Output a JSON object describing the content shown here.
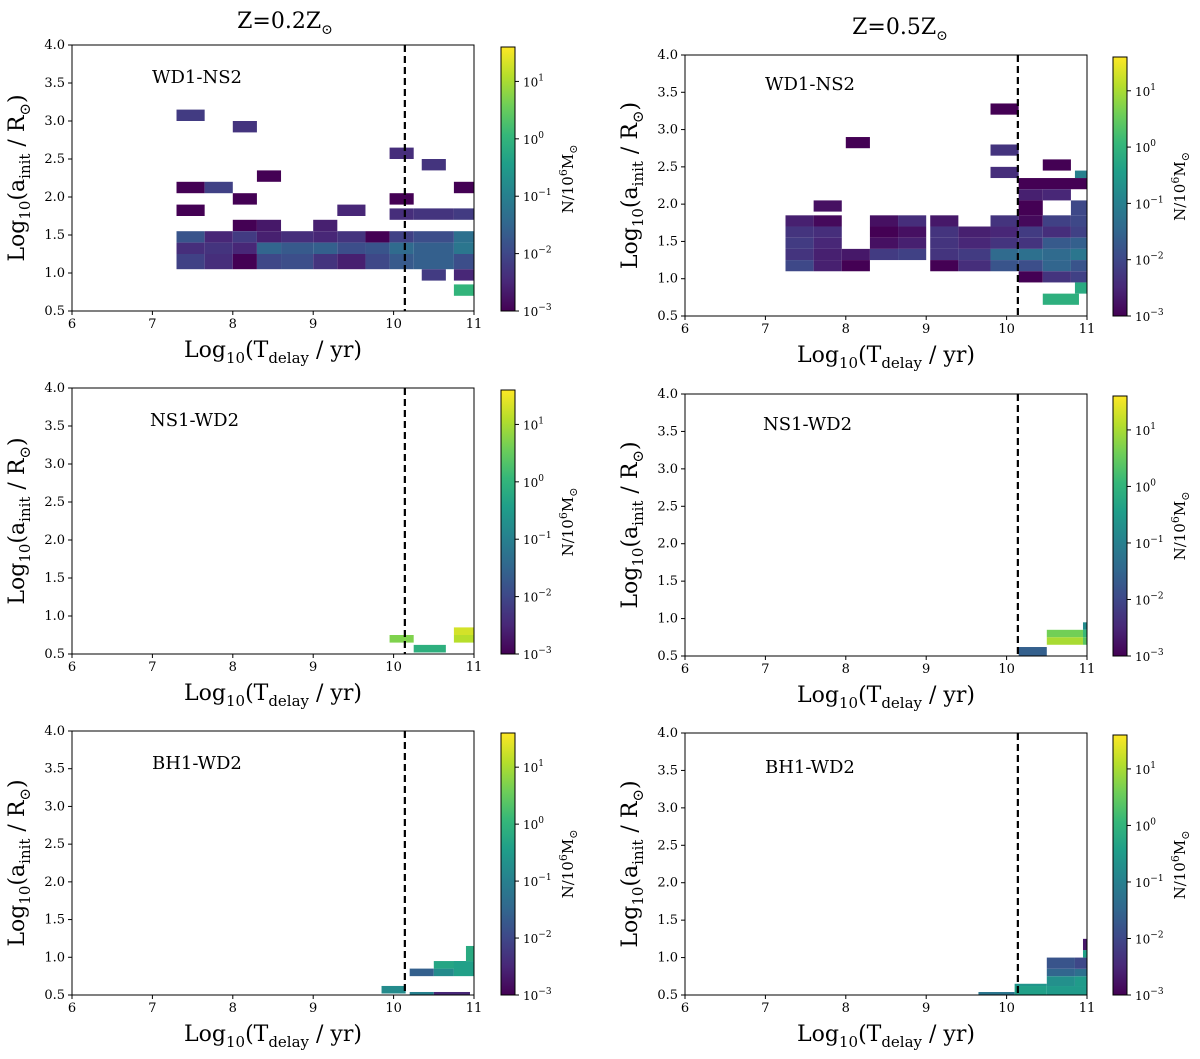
{
  "columns": [
    {
      "title": "Z=0.2Z",
      "sub": "⊙"
    },
    {
      "title": "Z=0.5Z",
      "sub": "⊙"
    }
  ],
  "axes_text": {
    "xlabel_main": "Log",
    "xlabel_sub1": "10",
    "xlabel_mid": "(T",
    "xlabel_sub2": "delay",
    "xlabel_end": " / yr)",
    "ylabel_main": "Log",
    "ylabel_sub1": "10",
    "ylabel_mid": "(a",
    "ylabel_sub2": "init",
    "ylabel_end": " / R",
    "ylabel_sun": "⊙",
    "ylabel_close": ")",
    "cb_label": "N/10",
    "cb_exp": "6",
    "cb_unit": "M",
    "cb_sun": "⊙",
    "cb_ticks": [
      {
        "base": "10",
        "exp": "1"
      },
      {
        "base": "10",
        "exp": "0"
      },
      {
        "base": "10",
        "exp": "−1"
      },
      {
        "base": "10",
        "exp": "−2"
      },
      {
        "base": "10",
        "exp": "−3"
      }
    ]
  },
  "colors": {
    "viridis": [
      "#440154",
      "#482878",
      "#3e4989",
      "#31688e",
      "#26828e",
      "#1f9e89",
      "#35b779",
      "#6ece58",
      "#b5de2b",
      "#fde725"
    ]
  },
  "chart_data": [
    {
      "type": "heatmap",
      "panel": "WD1-NS2",
      "column": 0,
      "xlim": [
        6,
        11
      ],
      "ylim": [
        0.5,
        4.0
      ],
      "xticks": [
        "6",
        "7",
        "8",
        "9",
        "10",
        "11"
      ],
      "yticks": [
        "0.5",
        "1.0",
        "1.5",
        "2.0",
        "2.5",
        "3.0",
        "3.5",
        "4.0"
      ],
      "vline_x": 10.14,
      "clim_log": [
        -3,
        1.6
      ],
      "cells": [
        [
          7.3,
          7.65,
          3.0,
          3.15,
          -2.2
        ],
        [
          8.0,
          8.3,
          2.85,
          3.0,
          -2.3
        ],
        [
          7.3,
          7.65,
          2.05,
          2.2,
          -3
        ],
        [
          7.65,
          8.0,
          2.05,
          2.2,
          -2.1
        ],
        [
          7.3,
          7.65,
          1.75,
          1.9,
          -3
        ],
        [
          8.0,
          8.3,
          1.9,
          2.05,
          -3
        ],
        [
          8.3,
          8.6,
          2.2,
          2.35,
          -3
        ],
        [
          8.0,
          8.3,
          1.55,
          1.7,
          -3
        ],
        [
          8.3,
          8.6,
          1.55,
          1.7,
          -2.7
        ],
        [
          9.0,
          9.3,
          1.55,
          1.7,
          -2.6
        ],
        [
          9.3,
          9.65,
          1.75,
          1.9,
          -2.5
        ],
        [
          9.95,
          10.25,
          2.5,
          2.65,
          -2.4
        ],
        [
          10.35,
          10.65,
          2.35,
          2.5,
          -2.3
        ],
        [
          9.95,
          10.25,
          1.9,
          2.05,
          -3
        ],
        [
          10.75,
          11.0,
          2.05,
          2.2,
          -3
        ],
        [
          9.95,
          10.25,
          1.7,
          1.85,
          -2.4
        ],
        [
          10.25,
          10.75,
          1.7,
          1.85,
          -2.3
        ],
        [
          10.75,
          11.0,
          1.7,
          1.85,
          -2.2
        ],
        [
          7.3,
          7.65,
          1.4,
          1.55,
          -1.8
        ],
        [
          7.65,
          8.0,
          1.4,
          1.55,
          -2.5
        ],
        [
          8.0,
          8.3,
          1.4,
          1.55,
          -2.2
        ],
        [
          8.3,
          8.6,
          1.4,
          1.55,
          -2.6
        ],
        [
          8.6,
          9.0,
          1.4,
          1.55,
          -2.4
        ],
        [
          9.0,
          9.3,
          1.4,
          1.55,
          -2.5
        ],
        [
          9.3,
          9.65,
          1.4,
          1.55,
          -2.3
        ],
        [
          9.65,
          9.95,
          1.4,
          1.55,
          -3
        ],
        [
          9.95,
          10.25,
          1.4,
          1.55,
          -2.1
        ],
        [
          10.25,
          10.75,
          1.4,
          1.55,
          -1.9
        ],
        [
          10.75,
          11.0,
          1.4,
          1.55,
          -1.3
        ],
        [
          7.3,
          7.65,
          1.25,
          1.4,
          -2.4
        ],
        [
          7.65,
          8.0,
          1.25,
          1.4,
          -2.3
        ],
        [
          8.0,
          8.3,
          1.25,
          1.4,
          -2.5
        ],
        [
          8.3,
          8.6,
          1.25,
          1.4,
          -1.5
        ],
        [
          8.6,
          9.0,
          1.25,
          1.4,
          -1.7
        ],
        [
          9.0,
          9.3,
          1.25,
          1.4,
          -1.6
        ],
        [
          9.3,
          9.65,
          1.25,
          1.4,
          -1.9
        ],
        [
          9.65,
          9.95,
          1.25,
          1.4,
          -1.8
        ],
        [
          9.95,
          10.25,
          1.25,
          1.4,
          -1.4
        ],
        [
          10.25,
          10.75,
          1.25,
          1.4,
          -1.6
        ],
        [
          10.75,
          11.0,
          1.25,
          1.4,
          -1.2
        ],
        [
          7.3,
          7.65,
          1.05,
          1.25,
          -2.1
        ],
        [
          7.65,
          8.0,
          1.05,
          1.25,
          -2.4
        ],
        [
          8.0,
          8.3,
          1.05,
          1.25,
          -3
        ],
        [
          8.3,
          8.6,
          1.05,
          1.25,
          -2.0
        ],
        [
          8.6,
          9.0,
          1.05,
          1.25,
          -1.9
        ],
        [
          9.0,
          9.3,
          1.05,
          1.25,
          -2.3
        ],
        [
          9.3,
          9.65,
          1.05,
          1.25,
          -2.6
        ],
        [
          9.65,
          9.95,
          1.05,
          1.25,
          -2.0
        ],
        [
          9.95,
          10.25,
          1.05,
          1.25,
          -1.7
        ],
        [
          10.25,
          10.75,
          1.05,
          1.25,
          -1.6
        ],
        [
          10.75,
          11.0,
          1.05,
          1.25,
          -1.9
        ],
        [
          10.35,
          10.65,
          0.9,
          1.05,
          -2.2
        ],
        [
          10.75,
          11.0,
          0.9,
          1.05,
          -2.5
        ],
        [
          10.75,
          11.0,
          0.7,
          0.85,
          0
        ]
      ]
    },
    {
      "type": "heatmap",
      "panel": "WD1-NS2",
      "column": 1,
      "xlim": [
        6,
        11
      ],
      "ylim": [
        0.5,
        4.0
      ],
      "xticks": [
        "6",
        "7",
        "8",
        "9",
        "10",
        "11"
      ],
      "yticks": [
        "0.5",
        "1.0",
        "1.5",
        "2.0",
        "2.5",
        "3.0",
        "3.5",
        "4.0"
      ],
      "vline_x": 10.14,
      "clim_log": [
        -3,
        1.6
      ],
      "cells": [
        [
          9.8,
          10.15,
          3.2,
          3.35,
          -3
        ],
        [
          8.0,
          8.3,
          2.75,
          2.9,
          -3
        ],
        [
          9.8,
          10.15,
          2.65,
          2.8,
          -2.3
        ],
        [
          9.8,
          10.15,
          2.35,
          2.5,
          -2.4
        ],
        [
          10.45,
          10.8,
          2.45,
          2.6,
          -3
        ],
        [
          10.15,
          11.0,
          2.2,
          2.35,
          -3
        ],
        [
          10.85,
          11.0,
          2.35,
          2.45,
          -1.0
        ],
        [
          10.15,
          10.45,
          2.05,
          2.2,
          -2.6
        ],
        [
          10.45,
          10.8,
          2.05,
          2.2,
          -2.5
        ],
        [
          10.15,
          10.45,
          1.85,
          2.05,
          -3
        ],
        [
          10.8,
          11.0,
          1.85,
          2.05,
          -2.0
        ],
        [
          7.6,
          7.95,
          1.9,
          2.05,
          -2.8
        ],
        [
          7.25,
          7.6,
          1.7,
          1.85,
          -2.6
        ],
        [
          7.6,
          7.95,
          1.7,
          1.85,
          -2.9
        ],
        [
          8.3,
          8.65,
          1.7,
          1.85,
          -2.8
        ],
        [
          8.65,
          9.0,
          1.7,
          1.85,
          -2.4
        ],
        [
          9.05,
          9.4,
          1.7,
          1.85,
          -2.7
        ],
        [
          9.8,
          10.15,
          1.7,
          1.85,
          -2.3
        ],
        [
          10.15,
          10.45,
          1.7,
          1.85,
          -2.9
        ],
        [
          10.45,
          10.8,
          1.7,
          1.85,
          -2.1
        ],
        [
          10.8,
          11.0,
          1.7,
          1.85,
          -2.0
        ],
        [
          7.25,
          7.6,
          1.55,
          1.7,
          -2.3
        ],
        [
          7.6,
          7.95,
          1.55,
          1.7,
          -2.4
        ],
        [
          8.3,
          8.65,
          1.55,
          1.7,
          -3
        ],
        [
          8.65,
          9.0,
          1.55,
          1.7,
          -2.8
        ],
        [
          9.05,
          9.4,
          1.55,
          1.7,
          -2.3
        ],
        [
          9.4,
          9.8,
          1.55,
          1.7,
          -2.6
        ],
        [
          9.8,
          10.15,
          1.55,
          1.7,
          -2.5
        ],
        [
          10.15,
          10.45,
          1.55,
          1.7,
          -2.2
        ],
        [
          10.45,
          10.8,
          1.55,
          1.7,
          -2.4
        ],
        [
          10.8,
          11.0,
          1.55,
          1.7,
          -2.1
        ],
        [
          7.25,
          7.6,
          1.4,
          1.55,
          -2.2
        ],
        [
          7.6,
          7.95,
          1.4,
          1.55,
          -2.5
        ],
        [
          8.3,
          8.65,
          1.4,
          1.55,
          -2.8
        ],
        [
          8.65,
          9.0,
          1.4,
          1.55,
          -2.6
        ],
        [
          9.05,
          9.4,
          1.4,
          1.55,
          -2.3
        ],
        [
          9.4,
          9.8,
          1.4,
          1.55,
          -2.5
        ],
        [
          9.8,
          10.15,
          1.4,
          1.55,
          -2.3
        ],
        [
          10.15,
          10.45,
          1.4,
          1.55,
          -2.3
        ],
        [
          10.45,
          10.8,
          1.4,
          1.55,
          -1.7
        ],
        [
          10.8,
          11.0,
          1.4,
          1.55,
          -1.6
        ],
        [
          7.25,
          7.6,
          1.25,
          1.4,
          -2.3
        ],
        [
          7.6,
          7.95,
          1.25,
          1.4,
          -2.6
        ],
        [
          7.95,
          8.3,
          1.25,
          1.4,
          -2.7
        ],
        [
          8.3,
          8.65,
          1.25,
          1.4,
          -2.2
        ],
        [
          8.65,
          9.0,
          1.25,
          1.4,
          -2.1
        ],
        [
          9.05,
          9.4,
          1.25,
          1.4,
          -2.3
        ],
        [
          9.4,
          9.8,
          1.25,
          1.4,
          -2.2
        ],
        [
          9.8,
          10.15,
          1.25,
          1.4,
          -1.4
        ],
        [
          10.15,
          10.45,
          1.25,
          1.4,
          -1.3
        ],
        [
          10.45,
          10.8,
          1.25,
          1.4,
          -1.4
        ],
        [
          10.8,
          11.0,
          1.25,
          1.4,
          -1.2
        ],
        [
          7.25,
          7.6,
          1.1,
          1.25,
          -2.0
        ],
        [
          7.6,
          7.95,
          1.1,
          1.25,
          -2.6
        ],
        [
          7.95,
          8.3,
          1.1,
          1.25,
          -3
        ],
        [
          9.05,
          9.4,
          1.1,
          1.25,
          -3
        ],
        [
          9.4,
          9.8,
          1.1,
          1.25,
          -2.4
        ],
        [
          9.8,
          10.15,
          1.1,
          1.25,
          -1.8
        ],
        [
          10.15,
          10.45,
          1.1,
          1.25,
          -1.9
        ],
        [
          10.45,
          10.8,
          1.1,
          1.25,
          -1.5
        ],
        [
          10.8,
          11.0,
          1.1,
          1.25,
          -1.8
        ],
        [
          10.15,
          10.45,
          0.95,
          1.1,
          -3
        ],
        [
          10.45,
          10.8,
          0.95,
          1.1,
          -2.3
        ],
        [
          10.8,
          11.0,
          0.95,
          1.1,
          -2.1
        ],
        [
          10.85,
          11.0,
          0.8,
          0.95,
          -0.2
        ],
        [
          10.45,
          10.9,
          0.65,
          0.8,
          -0.1
        ]
      ]
    },
    {
      "type": "heatmap",
      "panel": "NS1-WD2",
      "column": 0,
      "xlim": [
        6,
        11
      ],
      "ylim": [
        0.5,
        4.0
      ],
      "xticks": [
        "6",
        "7",
        "8",
        "9",
        "10",
        "11"
      ],
      "yticks": [
        "0.5",
        "1.0",
        "1.5",
        "2.0",
        "2.5",
        "3.0",
        "3.5",
        "4.0"
      ],
      "vline_x": 10.14,
      "clim_log": [
        -3,
        1.6
      ],
      "cells": [
        [
          9.95,
          10.25,
          0.65,
          0.75,
          0.7
        ],
        [
          10.75,
          11.0,
          0.75,
          0.85,
          1.3
        ],
        [
          10.75,
          11.0,
          0.65,
          0.75,
          1.1
        ],
        [
          10.25,
          10.65,
          0.52,
          0.62,
          -0.1
        ]
      ]
    },
    {
      "type": "heatmap",
      "panel": "NS1-WD2",
      "column": 1,
      "xlim": [
        6,
        11
      ],
      "ylim": [
        0.5,
        4.0
      ],
      "xticks": [
        "6",
        "7",
        "8",
        "9",
        "10",
        "11"
      ],
      "yticks": [
        "0.5",
        "1.0",
        "1.5",
        "2.0",
        "2.5",
        "3.0",
        "3.5",
        "4.0"
      ],
      "vline_x": 10.14,
      "clim_log": [
        -3,
        1.6
      ],
      "cells": [
        [
          10.15,
          10.5,
          0.5,
          0.62,
          -1.6
        ],
        [
          10.5,
          10.95,
          0.75,
          0.85,
          0.6
        ],
        [
          10.5,
          10.95,
          0.65,
          0.75,
          1.0
        ],
        [
          10.95,
          11.0,
          0.85,
          0.95,
          -0.8
        ],
        [
          10.95,
          11.0,
          0.75,
          0.85,
          0.1
        ],
        [
          10.95,
          11.0,
          0.65,
          0.75,
          0.4
        ]
      ]
    },
    {
      "type": "heatmap",
      "panel": "BH1-WD2",
      "column": 0,
      "xlim": [
        6,
        11
      ],
      "ylim": [
        0.5,
        4.0
      ],
      "xticks": [
        "6",
        "7",
        "8",
        "9",
        "10",
        "11"
      ],
      "yticks": [
        "0.5",
        "1.0",
        "1.5",
        "2.0",
        "2.5",
        "3.0",
        "3.5",
        "4.0"
      ],
      "vline_x": 10.14,
      "clim_log": [
        -3,
        1.6
      ],
      "cells": [
        [
          9.85,
          10.15,
          0.52,
          0.62,
          -0.8
        ],
        [
          10.2,
          10.5,
          0.75,
          0.85,
          -1.6
        ],
        [
          10.5,
          10.75,
          0.75,
          0.85,
          -0.8
        ],
        [
          10.5,
          10.9,
          0.85,
          0.95,
          -0.3
        ],
        [
          10.9,
          11.0,
          0.95,
          1.15,
          -0.2
        ],
        [
          10.75,
          11.0,
          0.75,
          0.95,
          -0.4
        ],
        [
          10.2,
          10.5,
          0.5,
          0.54,
          -1.0
        ],
        [
          10.5,
          10.95,
          0.5,
          0.54,
          -2.5
        ]
      ]
    },
    {
      "type": "heatmap",
      "panel": "BH1-WD2",
      "column": 1,
      "xlim": [
        6,
        11
      ],
      "ylim": [
        0.5,
        4.0
      ],
      "xticks": [
        "6",
        "7",
        "8",
        "9",
        "10",
        "11"
      ],
      "yticks": [
        "0.5",
        "1.0",
        "1.5",
        "2.0",
        "2.5",
        "3.0",
        "3.5",
        "4.0"
      ],
      "vline_x": 10.14,
      "clim_log": [
        -3,
        1.6
      ],
      "cells": [
        [
          9.65,
          10.1,
          0.5,
          0.54,
          -1.2
        ],
        [
          10.1,
          10.5,
          0.5,
          0.62,
          -0.4
        ],
        [
          10.5,
          11.0,
          0.5,
          0.62,
          -0.5
        ],
        [
          10.1,
          10.5,
          0.62,
          0.65,
          -0.6
        ],
        [
          10.5,
          10.85,
          0.85,
          1.0,
          -1.8
        ],
        [
          10.5,
          10.85,
          0.75,
          0.85,
          -1.5
        ],
        [
          10.5,
          10.85,
          0.62,
          0.75,
          -0.7
        ],
        [
          10.85,
          11.0,
          0.62,
          0.75,
          -0.5
        ],
        [
          10.85,
          11.0,
          0.75,
          0.85,
          -1.3
        ],
        [
          10.85,
          11.0,
          0.85,
          1.0,
          -2.0
        ],
        [
          10.95,
          11.0,
          1.0,
          1.1,
          -0.4
        ],
        [
          10.95,
          11.0,
          1.1,
          1.25,
          -2.7
        ]
      ]
    }
  ]
}
